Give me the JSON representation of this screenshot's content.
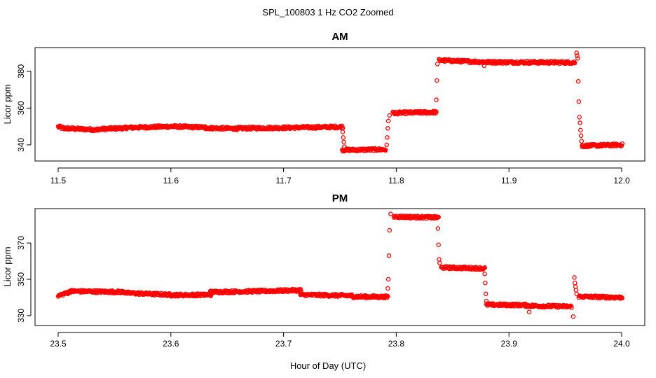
{
  "figure": {
    "title": "SPL_100803  1 Hz CO2 Zoomed",
    "xlabel": "Hour of Day (UTC)"
  },
  "colors": {
    "points": "#ff0000",
    "axes": "#000000"
  },
  "chart_data": [
    {
      "type": "scatter",
      "title": "AM",
      "ylabel": "Licor ppm",
      "xlim": [
        11.5,
        12.0
      ],
      "ylim": [
        333.5,
        391
      ],
      "xticks": [
        "11.5",
        "11.6",
        "11.7",
        "11.8",
        "11.9",
        "12.0"
      ],
      "yticks": [
        "340",
        "360",
        "380"
      ],
      "marker": "open-circle",
      "segments": [
        {
          "x": [
            11.5,
            11.505
          ],
          "y": [
            349.8,
            349.0
          ]
        },
        {
          "x": [
            11.505,
            11.535
          ],
          "y": [
            349.0,
            348.2
          ]
        },
        {
          "x": [
            11.535,
            11.56
          ],
          "y": [
            348.5,
            349.2
          ]
        },
        {
          "x": [
            11.56,
            11.6
          ],
          "y": [
            349.3,
            350.0
          ]
        },
        {
          "x": [
            11.6,
            11.63
          ],
          "y": [
            350.0,
            349.5
          ]
        },
        {
          "x": [
            11.63,
            11.66
          ],
          "y": [
            349.2,
            348.8
          ]
        },
        {
          "x": [
            11.66,
            11.7
          ],
          "y": [
            349.0,
            349.3
          ]
        },
        {
          "x": [
            11.7,
            11.752
          ],
          "y": [
            349.3,
            349.8
          ]
        },
        {
          "x": [
            11.752,
            11.79
          ],
          "y": [
            337.2,
            337.5
          ]
        },
        {
          "x": [
            11.797,
            11.835
          ],
          "y": [
            357.3,
            357.8
          ]
        },
        {
          "x": [
            11.838,
            11.88
          ],
          "y": [
            386.0,
            385.0
          ]
        },
        {
          "x": [
            11.88,
            11.958
          ],
          "y": [
            385.0,
            384.8
          ]
        },
        {
          "x": [
            11.965,
            12.0
          ],
          "y": [
            339.5,
            340.0
          ]
        }
      ],
      "points": [
        {
          "x": 11.7525,
          "y": 347.0
        },
        {
          "x": 11.753,
          "y": 344.0
        },
        {
          "x": 11.7535,
          "y": 341.5
        },
        {
          "x": 11.754,
          "y": 339.0
        },
        {
          "x": 11.7905,
          "y": 337.0
        },
        {
          "x": 11.7915,
          "y": 340.0
        },
        {
          "x": 11.792,
          "y": 344.0
        },
        {
          "x": 11.7925,
          "y": 349.0
        },
        {
          "x": 11.793,
          "y": 353.0
        },
        {
          "x": 11.794,
          "y": 356.0
        },
        {
          "x": 11.8355,
          "y": 364.5
        },
        {
          "x": 11.836,
          "y": 375.0
        },
        {
          "x": 11.8365,
          "y": 384.0
        },
        {
          "x": 11.96,
          "y": 390.0
        },
        {
          "x": 11.9605,
          "y": 388.5
        },
        {
          "x": 11.961,
          "y": 387.0
        },
        {
          "x": 11.9615,
          "y": 374.5
        },
        {
          "x": 11.962,
          "y": 363.5
        },
        {
          "x": 11.9625,
          "y": 355.0
        },
        {
          "x": 11.963,
          "y": 352.0
        },
        {
          "x": 11.9635,
          "y": 348.0
        },
        {
          "x": 11.964,
          "y": 345.0
        },
        {
          "x": 11.9645,
          "y": 342.0
        },
        {
          "x": 11.965,
          "y": 339.0
        },
        {
          "x": 11.878,
          "y": 383.0
        }
      ]
    },
    {
      "type": "scatter",
      "title": "PM",
      "ylabel": "Licor ppm",
      "xlim": [
        23.5,
        24.0
      ],
      "ylim": [
        326.5,
        387
      ],
      "xticks": [
        "23.5",
        "23.6",
        "23.7",
        "23.8",
        "23.9",
        "24.0"
      ],
      "yticks": [
        "330",
        "350",
        "370"
      ],
      "marker": "open-circle",
      "segments": [
        {
          "x": [
            23.5,
            23.51
          ],
          "y": [
            341.0,
            343.0
          ]
        },
        {
          "x": [
            23.51,
            23.56
          ],
          "y": [
            343.5,
            343.0
          ]
        },
        {
          "x": [
            23.56,
            23.6
          ],
          "y": [
            342.5,
            341.5
          ]
        },
        {
          "x": [
            23.6,
            23.635
          ],
          "y": [
            341.3,
            341.5
          ]
        },
        {
          "x": [
            23.635,
            23.68
          ],
          "y": [
            343.0,
            343.5
          ]
        },
        {
          "x": [
            23.68,
            23.715
          ],
          "y": [
            343.5,
            344.0
          ]
        },
        {
          "x": [
            23.715,
            23.76
          ],
          "y": [
            341.5,
            341.0
          ]
        },
        {
          "x": [
            23.76,
            23.792
          ],
          "y": [
            340.5,
            340.3
          ]
        },
        {
          "x": [
            23.798,
            23.837
          ],
          "y": [
            384.5,
            384.0
          ]
        },
        {
          "x": [
            23.84,
            23.878
          ],
          "y": [
            356.5,
            356.0
          ]
        },
        {
          "x": [
            23.88,
            23.915
          ],
          "y": [
            336.0,
            335.8
          ]
        },
        {
          "x": [
            23.915,
            23.955
          ],
          "y": [
            335.5,
            335.0
          ]
        },
        {
          "x": [
            23.962,
            24.0
          ],
          "y": [
            340.5,
            340.0
          ]
        }
      ],
      "points": [
        {
          "x": 23.7925,
          "y": 345.0
        },
        {
          "x": 23.793,
          "y": 350.0
        },
        {
          "x": 23.7935,
          "y": 363.0
        },
        {
          "x": 23.794,
          "y": 377.0
        },
        {
          "x": 23.795,
          "y": 386.0
        },
        {
          "x": 23.837,
          "y": 378.0
        },
        {
          "x": 23.8375,
          "y": 369.0
        },
        {
          "x": 23.838,
          "y": 361.0
        },
        {
          "x": 23.8385,
          "y": 359.0
        },
        {
          "x": 23.8785,
          "y": 353.0
        },
        {
          "x": 23.879,
          "y": 348.0
        },
        {
          "x": 23.8795,
          "y": 342.0
        },
        {
          "x": 23.88,
          "y": 338.0
        },
        {
          "x": 23.918,
          "y": 332.0
        },
        {
          "x": 23.957,
          "y": 329.5
        },
        {
          "x": 23.958,
          "y": 351.0
        },
        {
          "x": 23.9585,
          "y": 348.0
        },
        {
          "x": 23.959,
          "y": 346.0
        },
        {
          "x": 23.9595,
          "y": 344.0
        },
        {
          "x": 23.96,
          "y": 342.0
        }
      ]
    }
  ]
}
